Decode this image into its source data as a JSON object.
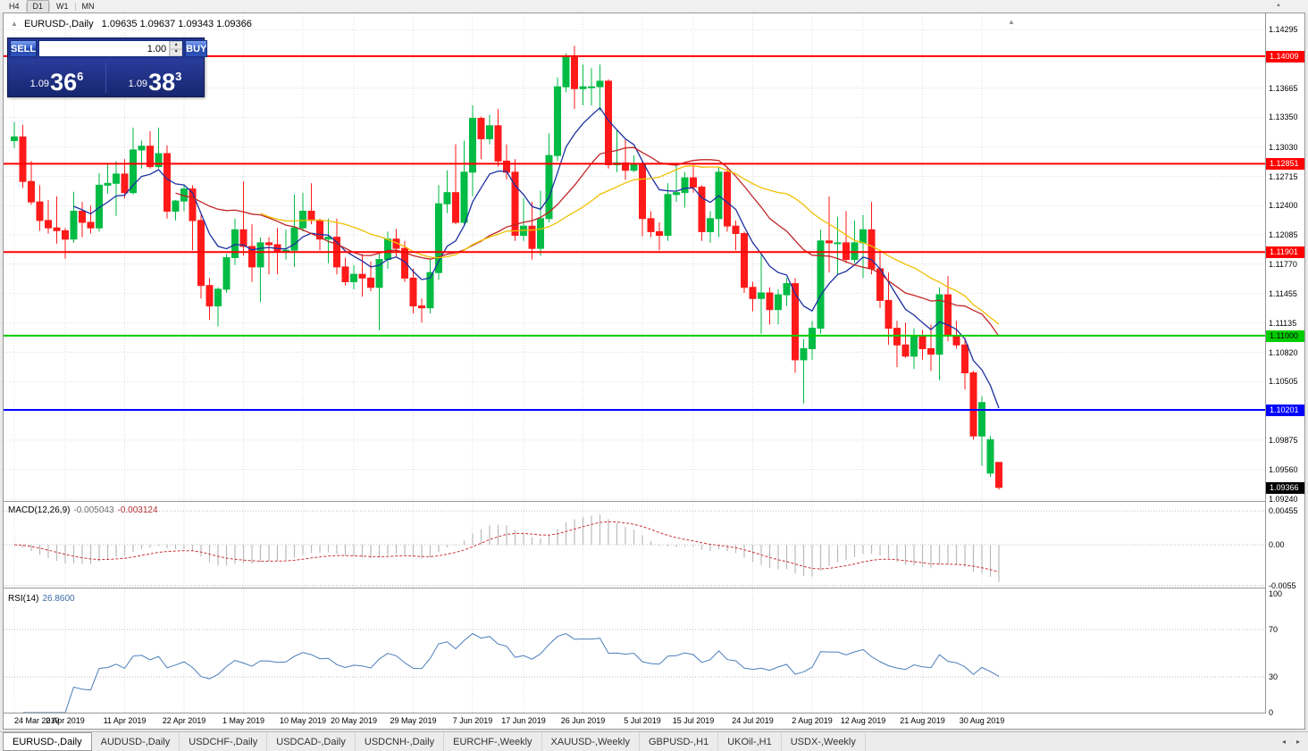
{
  "toolbar": {
    "timeframes": [
      {
        "label": "H4",
        "active": false
      },
      {
        "label": "D1",
        "active": true
      },
      {
        "label": "W1",
        "active": false
      },
      {
        "label": "MN",
        "active": false
      }
    ]
  },
  "chart_header": {
    "title": "EURUSD-,Daily",
    "ohlc": "1.09635 1.09637 1.09343 1.09366"
  },
  "trade_panel": {
    "sell_label": "SELL",
    "buy_label": "BUY",
    "volume": "1.00",
    "sell_price": {
      "prefix": "1.09",
      "big": "36",
      "sup": "6"
    },
    "buy_price": {
      "prefix": "1.09",
      "big": "38",
      "sup": "3"
    }
  },
  "price_axis": {
    "labels": [
      "1.14295",
      "1.13665",
      "1.13350",
      "1.13030",
      "1.12715",
      "1.12400",
      "1.12085",
      "1.11770",
      "1.11455",
      "1.11135",
      "1.10820",
      "1.10505",
      "1.09875",
      "1.09560",
      "1.09240"
    ],
    "current_price": {
      "text": "1.09366",
      "value": 1.09366,
      "bg": "#000000",
      "fg": "#ffffff"
    }
  },
  "hlines": [
    {
      "price": 1.14009,
      "text": "1.14009",
      "color": "#ff0000",
      "text_color": "#ffffff"
    },
    {
      "price": 1.12851,
      "text": "1.12851",
      "color": "#ff0000",
      "text_color": "#ffffff"
    },
    {
      "price": 1.11901,
      "text": "1.11901",
      "color": "#ff0000",
      "text_color": "#ffffff"
    },
    {
      "price": 1.11,
      "text": "1.11000",
      "color": "#00cc00",
      "text_color": "#000000"
    },
    {
      "price": 1.10201,
      "text": "1.10201",
      "color": "#0000ff",
      "text_color": "#ffffff"
    }
  ],
  "indicators": {
    "macd": {
      "name": "MACD(12,26,9)",
      "value_main": "-0.005043",
      "value_signal": "-0.003124",
      "axis_labels": [
        "0.00455",
        "0.00",
        "-0.0055"
      ],
      "axis_values": [
        0.00455,
        0,
        -0.0055
      ],
      "range": 0.0058,
      "fast": 12,
      "slow": 26,
      "signal": 9,
      "histogram_color": "#bbbbbb",
      "signal_color": "#cc3333"
    },
    "rsi": {
      "name": "RSI(14)",
      "value": "26.8600",
      "period": 14,
      "axis_labels": [
        "100",
        "70",
        "30",
        "0"
      ],
      "axis_values": [
        100,
        70,
        30,
        0
      ],
      "levels": [
        70,
        30
      ],
      "line_color": "#4a7eba"
    }
  },
  "date_axis": {
    "labels": [
      "24 Mar 2019",
      "2 Apr 2019",
      "11 Apr 2019",
      "22 Apr 2019",
      "1 May 2019",
      "10 May 2019",
      "20 May 2019",
      "29 May 2019",
      "7 Jun 2019",
      "17 Jun 2019",
      "26 Jun 2019",
      "5 Jul 2019",
      "15 Jul 2019",
      "24 Jul 2019",
      "2 Aug 2019",
      "12 Aug 2019",
      "21 Aug 2019",
      "30 Aug 2019"
    ],
    "candle_index": [
      0,
      6,
      13,
      20,
      27,
      34,
      40,
      47,
      54,
      60,
      67,
      74,
      80,
      87,
      94,
      100,
      107,
      114
    ]
  },
  "tabs": {
    "items": [
      {
        "label": "EURUSD-,Daily",
        "active": true
      },
      {
        "label": "AUDUSD-,Daily",
        "active": false
      },
      {
        "label": "USDCHF-,Daily",
        "active": false
      },
      {
        "label": "USDCAD-,Daily",
        "active": false
      },
      {
        "label": "USDCNH-,Daily",
        "active": false
      },
      {
        "label": "EURCHF-,Weekly",
        "active": false
      },
      {
        "label": "XAUUSD-,Weekly",
        "active": false
      },
      {
        "label": "GBPUSD-,H1",
        "active": false
      },
      {
        "label": "UKOil-,H1",
        "active": false
      },
      {
        "label": "USDX-,Weekly",
        "active": false
      }
    ]
  },
  "chart_data": {
    "type": "candlestick",
    "symbol": "EURUSD-",
    "timeframe": "Daily",
    "price_min": 1.0922,
    "price_max": 1.1447,
    "bull_color": "#00bb44",
    "bear_color": "#ff1a1a",
    "grid_color": "#dcdcdc",
    "ma": [
      {
        "period": 8,
        "method": "ema",
        "color": "#1c2fa0"
      },
      {
        "period": 20,
        "method": "sma",
        "color": "#c02525"
      },
      {
        "period": 30,
        "method": "sma",
        "color": "#f0c000"
      }
    ],
    "candles": [
      [
        1.131,
        1.133,
        1.1302,
        1.1314
      ],
      [
        1.1314,
        1.1327,
        1.1259,
        1.1266
      ],
      [
        1.1266,
        1.1288,
        1.1241,
        1.1244
      ],
      [
        1.1244,
        1.1262,
        1.1213,
        1.1224
      ],
      [
        1.1224,
        1.1246,
        1.121,
        1.1216
      ],
      [
        1.1216,
        1.125,
        1.1199,
        1.1213
      ],
      [
        1.1213,
        1.1216,
        1.1183,
        1.1204
      ],
      [
        1.1204,
        1.1255,
        1.12,
        1.1234
      ],
      [
        1.1234,
        1.1244,
        1.1206,
        1.1222
      ],
      [
        1.1222,
        1.124,
        1.121,
        1.1216
      ],
      [
        1.1216,
        1.1275,
        1.1212,
        1.1262
      ],
      [
        1.1262,
        1.1284,
        1.1253,
        1.1264
      ],
      [
        1.1264,
        1.1288,
        1.1229,
        1.1274
      ],
      [
        1.1274,
        1.129,
        1.1248,
        1.1254
      ],
      [
        1.1254,
        1.1324,
        1.1252,
        1.13
      ],
      [
        1.13,
        1.131,
        1.128,
        1.1304
      ],
      [
        1.1304,
        1.132,
        1.128,
        1.1282
      ],
      [
        1.1282,
        1.1324,
        1.128,
        1.1296
      ],
      [
        1.1296,
        1.1305,
        1.1226,
        1.1234
      ],
      [
        1.1234,
        1.1246,
        1.1224,
        1.1245
      ],
      [
        1.1245,
        1.1262,
        1.1234,
        1.1258
      ],
      [
        1.1258,
        1.1262,
        1.1192,
        1.1224
      ],
      [
        1.1224,
        1.123,
        1.114,
        1.1154
      ],
      [
        1.1154,
        1.1162,
        1.1117,
        1.1132
      ],
      [
        1.1132,
        1.1152,
        1.111,
        1.115
      ],
      [
        1.115,
        1.1188,
        1.1146,
        1.1184
      ],
      [
        1.1184,
        1.1226,
        1.1176,
        1.1214
      ],
      [
        1.1214,
        1.1266,
        1.1186,
        1.1196
      ],
      [
        1.1196,
        1.122,
        1.1158,
        1.1174
      ],
      [
        1.1174,
        1.1206,
        1.1136,
        1.12
      ],
      [
        1.12,
        1.1206,
        1.1166,
        1.1198
      ],
      [
        1.1198,
        1.1216,
        1.1166,
        1.119
      ],
      [
        1.119,
        1.1214,
        1.1182,
        1.1192
      ],
      [
        1.1192,
        1.1252,
        1.1174,
        1.1216
      ],
      [
        1.1216,
        1.1254,
        1.1212,
        1.1234
      ],
      [
        1.1234,
        1.1264,
        1.122,
        1.1224
      ],
      [
        1.1224,
        1.1226,
        1.1192,
        1.1204
      ],
      [
        1.1204,
        1.1226,
        1.1178,
        1.1206
      ],
      [
        1.1206,
        1.1226,
        1.1166,
        1.1174
      ],
      [
        1.1174,
        1.1184,
        1.1154,
        1.1158
      ],
      [
        1.1158,
        1.1176,
        1.115,
        1.1166
      ],
      [
        1.1166,
        1.1188,
        1.1142,
        1.1162
      ],
      [
        1.1162,
        1.118,
        1.1148,
        1.1152
      ],
      [
        1.1152,
        1.1188,
        1.1106,
        1.1182
      ],
      [
        1.1182,
        1.1212,
        1.1172,
        1.1204
      ],
      [
        1.1204,
        1.1215,
        1.1184,
        1.1194
      ],
      [
        1.1194,
        1.1202,
        1.1158,
        1.1162
      ],
      [
        1.1162,
        1.1172,
        1.1124,
        1.1132
      ],
      [
        1.1132,
        1.114,
        1.1114,
        1.113
      ],
      [
        1.113,
        1.1182,
        1.1124,
        1.1168
      ],
      [
        1.1168,
        1.1262,
        1.116,
        1.1242
      ],
      [
        1.1242,
        1.1278,
        1.1232,
        1.1254
      ],
      [
        1.1254,
        1.1306,
        1.122,
        1.1222
      ],
      [
        1.1222,
        1.131,
        1.1218,
        1.1276
      ],
      [
        1.1276,
        1.1348,
        1.125,
        1.1334
      ],
      [
        1.1334,
        1.1336,
        1.129,
        1.1312
      ],
      [
        1.1312,
        1.1338,
        1.1306,
        1.1326
      ],
      [
        1.1326,
        1.1344,
        1.1282,
        1.1288
      ],
      [
        1.1288,
        1.1306,
        1.1268,
        1.1276
      ],
      [
        1.1276,
        1.129,
        1.1202,
        1.1208
      ],
      [
        1.1208,
        1.1248,
        1.1202,
        1.1218
      ],
      [
        1.1218,
        1.1244,
        1.1182,
        1.1194
      ],
      [
        1.1194,
        1.1256,
        1.1186,
        1.1226
      ],
      [
        1.1226,
        1.1318,
        1.1222,
        1.1294
      ],
      [
        1.1294,
        1.1378,
        1.1288,
        1.1368
      ],
      [
        1.1368,
        1.1404,
        1.1362,
        1.14
      ],
      [
        1.14,
        1.1412,
        1.1344,
        1.1366
      ],
      [
        1.1366,
        1.1392,
        1.1348,
        1.1368
      ],
      [
        1.1368,
        1.1388,
        1.1348,
        1.1368
      ],
      [
        1.1368,
        1.1392,
        1.1342,
        1.1374
      ],
      [
        1.1374,
        1.1376,
        1.128,
        1.1284
      ],
      [
        1.1284,
        1.1322,
        1.1276,
        1.1286
      ],
      [
        1.1286,
        1.1312,
        1.1268,
        1.1278
      ],
      [
        1.1278,
        1.1294,
        1.1276,
        1.1284
      ],
      [
        1.1284,
        1.1288,
        1.1207,
        1.1226
      ],
      [
        1.1226,
        1.1234,
        1.1206,
        1.1212
      ],
      [
        1.1212,
        1.1222,
        1.1192,
        1.1208
      ],
      [
        1.1208,
        1.1264,
        1.1202,
        1.1252
      ],
      [
        1.1252,
        1.1286,
        1.1244,
        1.1254
      ],
      [
        1.1254,
        1.1276,
        1.1238,
        1.127
      ],
      [
        1.127,
        1.1284,
        1.1254,
        1.126
      ],
      [
        1.126,
        1.1262,
        1.1202,
        1.1212
      ],
      [
        1.1212,
        1.1234,
        1.12,
        1.1226
      ],
      [
        1.1226,
        1.1282,
        1.1206,
        1.1276
      ],
      [
        1.1276,
        1.1282,
        1.1212,
        1.1218
      ],
      [
        1.1218,
        1.1224,
        1.1192,
        1.121
      ],
      [
        1.121,
        1.1212,
        1.1146,
        1.1152
      ],
      [
        1.1152,
        1.1158,
        1.1126,
        1.114
      ],
      [
        1.114,
        1.1188,
        1.1102,
        1.1146
      ],
      [
        1.1146,
        1.1152,
        1.1112,
        1.1128
      ],
      [
        1.1128,
        1.115,
        1.1112,
        1.1144
      ],
      [
        1.1144,
        1.1162,
        1.1132,
        1.1156
      ],
      [
        1.1156,
        1.1162,
        1.106,
        1.1074
      ],
      [
        1.1074,
        1.1096,
        1.1027,
        1.1086
      ],
      [
        1.1086,
        1.1116,
        1.1074,
        1.1108
      ],
      [
        1.1108,
        1.1214,
        1.1102,
        1.1202
      ],
      [
        1.1202,
        1.125,
        1.1168,
        1.12
      ],
      [
        1.12,
        1.1228,
        1.1166,
        1.12
      ],
      [
        1.12,
        1.1234,
        1.1178,
        1.1182
      ],
      [
        1.1182,
        1.1224,
        1.1178,
        1.12
      ],
      [
        1.12,
        1.123,
        1.1162,
        1.1214
      ],
      [
        1.1214,
        1.1244,
        1.1166,
        1.1172
      ],
      [
        1.1172,
        1.1192,
        1.113,
        1.1138
      ],
      [
        1.1138,
        1.1168,
        1.109,
        1.1108
      ],
      [
        1.1108,
        1.1116,
        1.1066,
        1.109
      ],
      [
        1.109,
        1.1114,
        1.1076,
        1.1078
      ],
      [
        1.1078,
        1.1108,
        1.1064,
        1.11
      ],
      [
        1.11,
        1.1106,
        1.1074,
        1.1086
      ],
      [
        1.1086,
        1.1112,
        1.1062,
        1.108
      ],
      [
        1.108,
        1.1152,
        1.1052,
        1.1144
      ],
      [
        1.1144,
        1.1164,
        1.1094,
        1.11
      ],
      [
        1.11,
        1.1116,
        1.1086,
        1.109
      ],
      [
        1.109,
        1.1098,
        1.1042,
        1.106
      ],
      [
        1.106,
        1.1062,
        1.0988,
        1.0992
      ],
      [
        1.0992,
        1.1035,
        1.096,
        1.1028
      ],
      [
        1.0952,
        1.0992,
        1.0948,
        1.0988
      ],
      [
        1.09635,
        1.09637,
        1.09343,
        1.09366
      ]
    ]
  }
}
